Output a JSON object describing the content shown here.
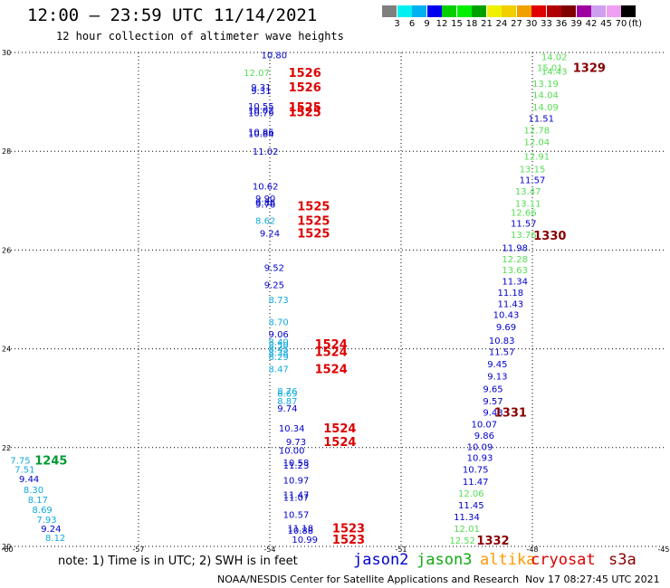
{
  "header": {
    "title": "12:00 – 23:59 UTC 11/14/2021",
    "subtitle": "12 hour collection of altimeter wave heights"
  },
  "colorbar": {
    "colors": [
      "#7f7f7f",
      "#00f0f0",
      "#00b0f0",
      "#0000f0",
      "#00d000",
      "#00f000",
      "#00a000",
      "#f0f000",
      "#f0d000",
      "#f0a000",
      "#e00000",
      "#b00000",
      "#800000",
      "#a000a0",
      "#d0a0f0",
      "#f0a0f0",
      "#000000"
    ],
    "labels": [
      "3",
      "6",
      "9",
      "12",
      "15",
      "18",
      "21",
      "24",
      "27",
      "30",
      "33",
      "36",
      "39",
      "42",
      "45",
      "70"
    ],
    "unit": "(ft)"
  },
  "chart_data": {
    "type": "scatter",
    "xlim": [
      -60,
      -45
    ],
    "ylim": [
      20,
      30
    ],
    "x_ticks": [
      "-60",
      "-57",
      "-54",
      "-51",
      "-48",
      "-45"
    ],
    "y_ticks": [
      "30",
      "28",
      "26",
      "24",
      "22",
      "20"
    ],
    "grid": true,
    "color_key": {
      "jason2": "#0000cc",
      "jason3": "#55dd55",
      "altika": "#ff9900",
      "cryosat": "#dd0000",
      "s3a": "#880000",
      "sentinel6": "#009933",
      "cyan": "#11aadd"
    },
    "points": [
      {
        "x": -53.9,
        "y": 29.95,
        "v": "10.80",
        "c": "jason2"
      },
      {
        "x": -54.3,
        "y": 29.6,
        "v": "12.07",
        "c": "jason3"
      },
      {
        "x": -54.2,
        "y": 29.3,
        "v": "9.31",
        "c": "jason2"
      },
      {
        "x": -54.2,
        "y": 29.23,
        "v": "9.31",
        "c": "jason2"
      },
      {
        "x": -54.2,
        "y": 28.92,
        "v": "10.55",
        "c": "jason2"
      },
      {
        "x": -54.2,
        "y": 28.84,
        "v": "10.02",
        "c": "jason2"
      },
      {
        "x": -54.2,
        "y": 28.78,
        "v": "10.79",
        "c": "jason2"
      },
      {
        "x": -54.2,
        "y": 28.4,
        "v": "10.86",
        "c": "jason2"
      },
      {
        "x": -54.2,
        "y": 28.36,
        "v": "10.84",
        "c": "jason2"
      },
      {
        "x": -54.1,
        "y": 28.0,
        "v": "11.02",
        "c": "jason2"
      },
      {
        "x": -54.1,
        "y": 27.3,
        "v": "10.62",
        "c": "jason2"
      },
      {
        "x": -54.1,
        "y": 27.05,
        "v": "9.90",
        "c": "jason2"
      },
      {
        "x": -54.1,
        "y": 26.97,
        "v": "9.86",
        "c": "jason2"
      },
      {
        "x": -54.1,
        "y": 26.93,
        "v": "9.76",
        "c": "jason2"
      },
      {
        "x": -54.1,
        "y": 26.6,
        "v": "8.62",
        "c": "cyan"
      },
      {
        "x": -54.0,
        "y": 26.35,
        "v": "9.24",
        "c": "jason2"
      },
      {
        "x": -53.9,
        "y": 25.65,
        "v": "9.52",
        "c": "jason2"
      },
      {
        "x": -53.9,
        "y": 25.3,
        "v": "9.25",
        "c": "jason2"
      },
      {
        "x": -53.8,
        "y": 25.0,
        "v": "8.73",
        "c": "cyan"
      },
      {
        "x": -53.8,
        "y": 24.55,
        "v": "8.70",
        "c": "cyan"
      },
      {
        "x": -53.8,
        "y": 24.3,
        "v": "9.06",
        "c": "jason2"
      },
      {
        "x": -53.8,
        "y": 24.15,
        "v": "8.40",
        "c": "cyan"
      },
      {
        "x": -53.8,
        "y": 24.08,
        "v": "8.50",
        "c": "cyan"
      },
      {
        "x": -53.8,
        "y": 24.0,
        "v": "8.45",
        "c": "cyan"
      },
      {
        "x": -53.8,
        "y": 23.93,
        "v": "8.38",
        "c": "cyan"
      },
      {
        "x": -53.8,
        "y": 23.85,
        "v": "8.29",
        "c": "cyan"
      },
      {
        "x": -53.8,
        "y": 23.6,
        "v": "8.47",
        "c": "cyan"
      },
      {
        "x": -53.6,
        "y": 23.15,
        "v": "8.76",
        "c": "cyan"
      },
      {
        "x": -53.6,
        "y": 23.1,
        "v": "8.69",
        "c": "cyan"
      },
      {
        "x": -53.6,
        "y": 22.95,
        "v": "8.87",
        "c": "cyan"
      },
      {
        "x": -53.6,
        "y": 22.8,
        "v": "9.74",
        "c": "jason2"
      },
      {
        "x": -53.5,
        "y": 22.4,
        "v": "10.34",
        "c": "jason2"
      },
      {
        "x": -53.4,
        "y": 22.12,
        "v": "9.73",
        "c": "jason2"
      },
      {
        "x": -53.5,
        "y": 21.95,
        "v": "10.00",
        "c": "jason2"
      },
      {
        "x": -53.4,
        "y": 21.7,
        "v": "10.58",
        "c": "jason2"
      },
      {
        "x": -53.4,
        "y": 21.65,
        "v": "11.23",
        "c": "jason2"
      },
      {
        "x": -53.4,
        "y": 21.35,
        "v": "10.97",
        "c": "jason2"
      },
      {
        "x": -53.4,
        "y": 21.05,
        "v": "11.47",
        "c": "jason2"
      },
      {
        "x": -53.4,
        "y": 21.0,
        "v": "11.07",
        "c": "jason2"
      },
      {
        "x": -53.4,
        "y": 20.65,
        "v": "10.57",
        "c": "jason2"
      },
      {
        "x": -53.3,
        "y": 20.38,
        "v": "11.18",
        "c": "jason2"
      },
      {
        "x": -53.3,
        "y": 20.33,
        "v": "10.88",
        "c": "jason2"
      },
      {
        "x": -53.2,
        "y": 20.15,
        "v": "10.99",
        "c": "jason2"
      },
      {
        "x": -47.5,
        "y": 29.92,
        "v": "14.02",
        "c": "jason3"
      },
      {
        "x": -47.6,
        "y": 29.7,
        "v": "15.01",
        "c": "jason3"
      },
      {
        "x": -47.5,
        "y": 29.62,
        "v": "14.43",
        "c": "jason3"
      },
      {
        "x": -47.7,
        "y": 29.38,
        "v": "13.19",
        "c": "jason3"
      },
      {
        "x": -47.7,
        "y": 29.15,
        "v": "14.04",
        "c": "jason3"
      },
      {
        "x": -47.7,
        "y": 28.9,
        "v": "14.09",
        "c": "jason3"
      },
      {
        "x": -47.8,
        "y": 28.67,
        "v": "11.51",
        "c": "jason2"
      },
      {
        "x": -47.9,
        "y": 28.43,
        "v": "12.78",
        "c": "jason3"
      },
      {
        "x": -47.9,
        "y": 28.2,
        "v": "12.04",
        "c": "jason3"
      },
      {
        "x": -47.9,
        "y": 27.9,
        "v": "12.91",
        "c": "jason3"
      },
      {
        "x": -48.0,
        "y": 27.65,
        "v": "13.15",
        "c": "jason3"
      },
      {
        "x": -48.0,
        "y": 27.43,
        "v": "11.57",
        "c": "jason2"
      },
      {
        "x": -48.1,
        "y": 27.2,
        "v": "13.47",
        "c": "jason3"
      },
      {
        "x": -48.1,
        "y": 26.95,
        "v": "13.11",
        "c": "jason3"
      },
      {
        "x": -48.2,
        "y": 26.77,
        "v": "12.66",
        "c": "jason3"
      },
      {
        "x": -48.2,
        "y": 26.55,
        "v": "11.57",
        "c": "jason2"
      },
      {
        "x": -48.2,
        "y": 26.32,
        "v": "13.76",
        "c": "jason3"
      },
      {
        "x": -48.4,
        "y": 26.05,
        "v": "11.98",
        "c": "jason2"
      },
      {
        "x": -48.4,
        "y": 25.82,
        "v": "12.28",
        "c": "jason3"
      },
      {
        "x": -48.4,
        "y": 25.6,
        "v": "13.63",
        "c": "jason3"
      },
      {
        "x": -48.4,
        "y": 25.38,
        "v": "11.34",
        "c": "jason2"
      },
      {
        "x": -48.5,
        "y": 25.15,
        "v": "11.18",
        "c": "jason2"
      },
      {
        "x": -48.5,
        "y": 24.92,
        "v": "11.43",
        "c": "jason2"
      },
      {
        "x": -48.6,
        "y": 24.7,
        "v": "10.43",
        "c": "jason2"
      },
      {
        "x": -48.6,
        "y": 24.45,
        "v": "9.69",
        "c": "jason2"
      },
      {
        "x": -48.7,
        "y": 24.18,
        "v": "10.83",
        "c": "jason2"
      },
      {
        "x": -48.7,
        "y": 23.95,
        "v": "11.57",
        "c": "jason2"
      },
      {
        "x": -48.8,
        "y": 23.7,
        "v": "9.45",
        "c": "jason2"
      },
      {
        "x": -48.8,
        "y": 23.45,
        "v": "9.13",
        "c": "jason2"
      },
      {
        "x": -48.9,
        "y": 23.2,
        "v": "9.65",
        "c": "jason2"
      },
      {
        "x": -48.9,
        "y": 22.95,
        "v": "9.57",
        "c": "jason2"
      },
      {
        "x": -48.9,
        "y": 22.72,
        "v": "9.43",
        "c": "jason2"
      },
      {
        "x": -49.1,
        "y": 22.48,
        "v": "10.07",
        "c": "jason2"
      },
      {
        "x": -49.1,
        "y": 22.25,
        "v": "9.86",
        "c": "jason2"
      },
      {
        "x": -49.2,
        "y": 22.02,
        "v": "10.09",
        "c": "jason2"
      },
      {
        "x": -49.2,
        "y": 21.8,
        "v": "10.93",
        "c": "jason2"
      },
      {
        "x": -49.3,
        "y": 21.57,
        "v": "10.75",
        "c": "jason2"
      },
      {
        "x": -49.3,
        "y": 21.32,
        "v": "11.47",
        "c": "jason2"
      },
      {
        "x": -49.4,
        "y": 21.08,
        "v": "12.06",
        "c": "jason3"
      },
      {
        "x": -49.4,
        "y": 20.84,
        "v": "11.45",
        "c": "jason2"
      },
      {
        "x": -49.5,
        "y": 20.6,
        "v": "11.34",
        "c": "jason2"
      },
      {
        "x": -49.5,
        "y": 20.37,
        "v": "12.01",
        "c": "jason3"
      },
      {
        "x": -49.6,
        "y": 20.13,
        "v": "12.52",
        "c": "jason3"
      },
      {
        "x": -59.7,
        "y": 21.75,
        "v": "7.75",
        "c": "cyan"
      },
      {
        "x": -59.6,
        "y": 21.57,
        "v": "7.51",
        "c": "cyan"
      },
      {
        "x": -59.5,
        "y": 21.37,
        "v": "9.44",
        "c": "jason2"
      },
      {
        "x": -59.4,
        "y": 21.15,
        "v": "8.30",
        "c": "cyan"
      },
      {
        "x": -59.3,
        "y": 20.95,
        "v": "8.17",
        "c": "cyan"
      },
      {
        "x": -59.2,
        "y": 20.75,
        "v": "8.69",
        "c": "cyan"
      },
      {
        "x": -59.1,
        "y": 20.55,
        "v": "7.93",
        "c": "cyan"
      },
      {
        "x": -59.0,
        "y": 20.37,
        "v": "9.24",
        "c": "jason2"
      },
      {
        "x": -58.9,
        "y": 20.18,
        "v": "8.12",
        "c": "cyan"
      }
    ],
    "time_labels": [
      {
        "x": -53.2,
        "y": 29.6,
        "v": "1526",
        "c": "cryosat"
      },
      {
        "x": -53.2,
        "y": 29.3,
        "v": "1526",
        "c": "cryosat"
      },
      {
        "x": -53.2,
        "y": 28.9,
        "v": "1525",
        "c": "cryosat"
      },
      {
        "x": -53.2,
        "y": 28.8,
        "v": "1525",
        "c": "cryosat"
      },
      {
        "x": -53.0,
        "y": 26.9,
        "v": "1525",
        "c": "cryosat"
      },
      {
        "x": -53.0,
        "y": 26.6,
        "v": "1525",
        "c": "cryosat"
      },
      {
        "x": -53.0,
        "y": 26.35,
        "v": "1525",
        "c": "cryosat"
      },
      {
        "x": -52.6,
        "y": 24.1,
        "v": "1524",
        "c": "cryosat"
      },
      {
        "x": -52.6,
        "y": 23.95,
        "v": "1524",
        "c": "cryosat"
      },
      {
        "x": -52.6,
        "y": 23.6,
        "v": "1524",
        "c": "cryosat"
      },
      {
        "x": -52.4,
        "y": 22.4,
        "v": "1524",
        "c": "cryosat"
      },
      {
        "x": -52.4,
        "y": 22.12,
        "v": "1524",
        "c": "cryosat"
      },
      {
        "x": -52.2,
        "y": 20.38,
        "v": "1523",
        "c": "cryosat"
      },
      {
        "x": -52.2,
        "y": 20.15,
        "v": "1523",
        "c": "cryosat"
      },
      {
        "x": -46.7,
        "y": 29.7,
        "v": "1329",
        "c": "s3a"
      },
      {
        "x": -47.6,
        "y": 26.3,
        "v": "1330",
        "c": "s3a"
      },
      {
        "x": -48.5,
        "y": 22.72,
        "v": "1331",
        "c": "s3a"
      },
      {
        "x": -48.9,
        "y": 20.13,
        "v": "1332",
        "c": "s3a"
      },
      {
        "x": -59.0,
        "y": 21.75,
        "v": "1245",
        "c": "sentinel6"
      }
    ]
  },
  "legend": {
    "note": "note: 1) Time is in UTC; 2) SWH is in feet",
    "satellites": [
      {
        "name": "jason2",
        "color": "#0000cc"
      },
      {
        "name": "jason3",
        "color": "#11aa11"
      },
      {
        "name": "altika",
        "color": "#ff9900"
      },
      {
        "name": "cryosat",
        "color": "#dd0000"
      },
      {
        "name": "s3a",
        "color": "#880000"
      }
    ]
  },
  "footer": {
    "org": "NOAA/NESDIS Center for Satellite Applications and Research",
    "timestamp": "Nov 17 08:27:45 UTC 2021"
  }
}
